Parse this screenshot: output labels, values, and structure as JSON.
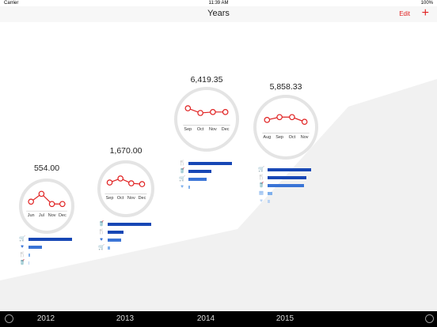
{
  "status": {
    "carrier": "Carrier",
    "time": "11:39 AM",
    "battery": "100%"
  },
  "nav": {
    "title": "Years",
    "edit_label": "Edit",
    "add_glyph": "+"
  },
  "colors": {
    "accent": "#e02020",
    "bar_dark": "#1747b5",
    "bar_mid": "#3a74d6",
    "bar_light": "#7fb0ec",
    "bar_pale": "#b9d3f3"
  },
  "years": [
    {
      "total": "554.00",
      "months": [
        "Jun",
        "Jul",
        "Nov",
        "Dec"
      ],
      "trend": [
        0.35,
        0.85,
        0.2,
        0.2
      ],
      "categories": [
        {
          "icon": "cart-icon",
          "glyph": "🛒",
          "level": 0.95,
          "color": "#1747b5"
        },
        {
          "icon": "heart-icon",
          "glyph": "♥",
          "level": 0.3,
          "color": "#3a74d6"
        },
        {
          "icon": "fork-knife-icon",
          "glyph": "🍴",
          "level": 0.03,
          "color": "#7fb0ec"
        },
        {
          "icon": "cup-icon",
          "glyph": "🥤",
          "level": 0.0,
          "color": "#b9d3f3"
        }
      ]
    },
    {
      "total": "1,670.00",
      "months": [
        "Sep",
        "Oct",
        "Nov",
        "Dec"
      ],
      "trend": [
        0.45,
        0.7,
        0.4,
        0.35
      ],
      "categories": [
        {
          "icon": "cup-icon",
          "glyph": "🥤",
          "level": 0.95,
          "color": "#1747b5"
        },
        {
          "icon": "fork-knife-icon",
          "glyph": "🍴",
          "level": 0.35,
          "color": "#1747b5"
        },
        {
          "icon": "heart-icon",
          "glyph": "♥",
          "level": 0.3,
          "color": "#3a74d6"
        },
        {
          "icon": "cart-icon",
          "glyph": "🛒",
          "level": 0.05,
          "color": "#7fb0ec"
        }
      ]
    },
    {
      "total": "6,419.35",
      "months": [
        "Sep",
        "Oct",
        "Nov",
        "Dec"
      ],
      "trend": [
        0.65,
        0.4,
        0.45,
        0.45
      ],
      "categories": [
        {
          "icon": "fork-knife-icon",
          "glyph": "🍴",
          "level": 0.95,
          "color": "#1747b5"
        },
        {
          "icon": "cup-icon",
          "glyph": "🥤",
          "level": 0.5,
          "color": "#1747b5"
        },
        {
          "icon": "cart-icon",
          "glyph": "🛒",
          "level": 0.4,
          "color": "#3a74d6"
        },
        {
          "icon": "heart-icon",
          "glyph": "♥",
          "level": 0.03,
          "color": "#7fb0ec"
        }
      ]
    },
    {
      "total": "5,858.33",
      "months": [
        "Aug",
        "Sep",
        "Oct",
        "Nov"
      ],
      "trend": [
        0.45,
        0.6,
        0.6,
        0.35
      ],
      "categories": [
        {
          "icon": "cart-icon",
          "glyph": "🛒",
          "level": 0.95,
          "color": "#1747b5"
        },
        {
          "icon": "fork-knife-icon",
          "glyph": "🍴",
          "level": 0.85,
          "color": "#1747b5"
        },
        {
          "icon": "cup-icon",
          "glyph": "🥤",
          "level": 0.8,
          "color": "#3a74d6"
        },
        {
          "icon": "cinema-icon",
          "glyph": "▦",
          "level": 0.1,
          "color": "#7fb0ec"
        },
        {
          "icon": "heart-icon",
          "glyph": "♥",
          "level": 0.05,
          "color": "#b9d3f3"
        }
      ]
    }
  ],
  "tabs": [
    "2012",
    "2013",
    "2014",
    "2015"
  ]
}
